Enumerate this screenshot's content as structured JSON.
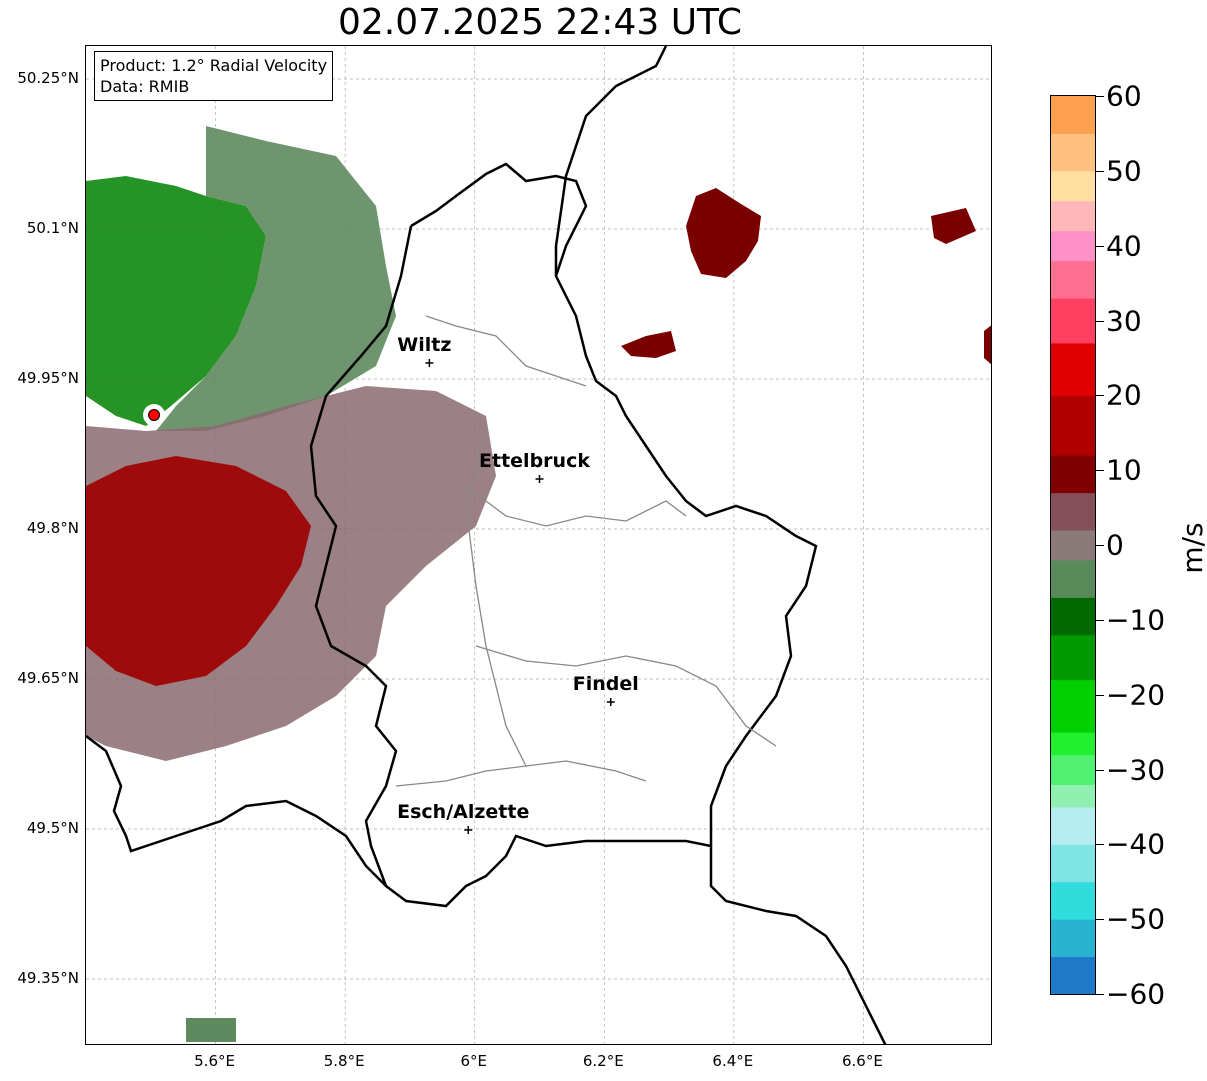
{
  "title": "02.07.2025 22:43 UTC",
  "info": {
    "product": "Product: 1.2° Radial Velocity",
    "data": "Data: RMIB"
  },
  "map": {
    "lat_range": [
      49.283,
      50.283
    ],
    "lon_range": [
      5.4,
      6.8
    ],
    "lat_ticks": [
      {
        "value": 50.25,
        "label": "50.25°N"
      },
      {
        "value": 50.1,
        "label": "50.1°N"
      },
      {
        "value": 49.95,
        "label": "49.95°N"
      },
      {
        "value": 49.8,
        "label": "49.8°N"
      },
      {
        "value": 49.65,
        "label": "49.65°N"
      },
      {
        "value": 49.5,
        "label": "49.5°N"
      },
      {
        "value": 49.35,
        "label": "49.35°N"
      }
    ],
    "lon_ticks": [
      {
        "value": 5.6,
        "label": "5.6°E"
      },
      {
        "value": 5.8,
        "label": "5.8°E"
      },
      {
        "value": 6.0,
        "label": "6°E"
      },
      {
        "value": 6.2,
        "label": "6.2°E"
      },
      {
        "value": 6.4,
        "label": "6.4°E"
      },
      {
        "value": 6.6,
        "label": "6.6°E"
      }
    ],
    "radar_site": {
      "lon": 5.505,
      "lat": 49.914,
      "color": "#ff0000"
    },
    "cities": [
      {
        "name": "Wiltz",
        "lon": 5.93,
        "lat": 49.966
      },
      {
        "name": "Ettelbruck",
        "lon": 6.1,
        "lat": 49.85
      },
      {
        "name": "Findel",
        "lon": 6.21,
        "lat": 49.627
      },
      {
        "name": "Esch/Alzette",
        "lon": 5.99,
        "lat": 49.499
      }
    ]
  },
  "colorbar": {
    "unit": "m/s",
    "ticks": [
      {
        "value": 60,
        "label": "60"
      },
      {
        "value": 50,
        "label": "50"
      },
      {
        "value": 40,
        "label": "40"
      },
      {
        "value": 30,
        "label": "30"
      },
      {
        "value": 20,
        "label": "20"
      },
      {
        "value": 10,
        "label": "10"
      },
      {
        "value": 0,
        "label": "0"
      },
      {
        "value": -10,
        "label": "−10"
      },
      {
        "value": -20,
        "label": "−20"
      },
      {
        "value": -30,
        "label": "−30"
      },
      {
        "value": -40,
        "label": "−40"
      },
      {
        "value": -50,
        "label": "−50"
      },
      {
        "value": -60,
        "label": "−60"
      }
    ],
    "stops": [
      {
        "from": -60,
        "to": -55,
        "color": "#1f78c8"
      },
      {
        "from": -55,
        "to": -50,
        "color": "#28b4d0"
      },
      {
        "from": -50,
        "to": -45,
        "color": "#30dcdc"
      },
      {
        "from": -45,
        "to": -40,
        "color": "#80e4e4"
      },
      {
        "from": -40,
        "to": -35,
        "color": "#b4ecf0"
      },
      {
        "from": -35,
        "to": -32,
        "color": "#90f0b0"
      },
      {
        "from": -32,
        "to": -28,
        "color": "#50f070"
      },
      {
        "from": -28,
        "to": -25,
        "color": "#20f030"
      },
      {
        "from": -25,
        "to": -18,
        "color": "#00d000"
      },
      {
        "from": -18,
        "to": -12,
        "color": "#009a00"
      },
      {
        "from": -12,
        "to": -7,
        "color": "#006a00"
      },
      {
        "from": -7,
        "to": -2,
        "color": "#5a8a5a"
      },
      {
        "from": -2,
        "to": 2,
        "color": "#8a7a7a"
      },
      {
        "from": 2,
        "to": 7,
        "color": "#85505a"
      },
      {
        "from": 7,
        "to": 12,
        "color": "#800000"
      },
      {
        "from": 12,
        "to": 20,
        "color": "#b00000"
      },
      {
        "from": 20,
        "to": 27,
        "color": "#e00000"
      },
      {
        "from": 27,
        "to": 33,
        "color": "#ff4060"
      },
      {
        "from": 33,
        "to": 38,
        "color": "#ff7090"
      },
      {
        "from": 38,
        "to": 42,
        "color": "#ff90c8"
      },
      {
        "from": 42,
        "to": 46,
        "color": "#ffb8b8"
      },
      {
        "from": 46,
        "to": 50,
        "color": "#ffe0a0"
      },
      {
        "from": 50,
        "to": 55,
        "color": "#ffc080"
      },
      {
        "from": 55,
        "to": 60,
        "color": "#ffa050"
      }
    ]
  },
  "echo_regions": [
    {
      "name": "north-west-green",
      "color": "#138a13",
      "opacity": 0.9
    },
    {
      "name": "north-west-grey-green",
      "color": "#5f8a5f",
      "opacity": 0.9
    },
    {
      "name": "central-west-grey",
      "color": "#8a6a70",
      "opacity": 0.85
    },
    {
      "name": "south-west-red",
      "color": "#a00000",
      "opacity": 0.9
    },
    {
      "name": "north-east-cell",
      "color": "#7a0000",
      "opacity": 1
    },
    {
      "name": "far-east-cell",
      "color": "#7a0000",
      "opacity": 1
    }
  ]
}
